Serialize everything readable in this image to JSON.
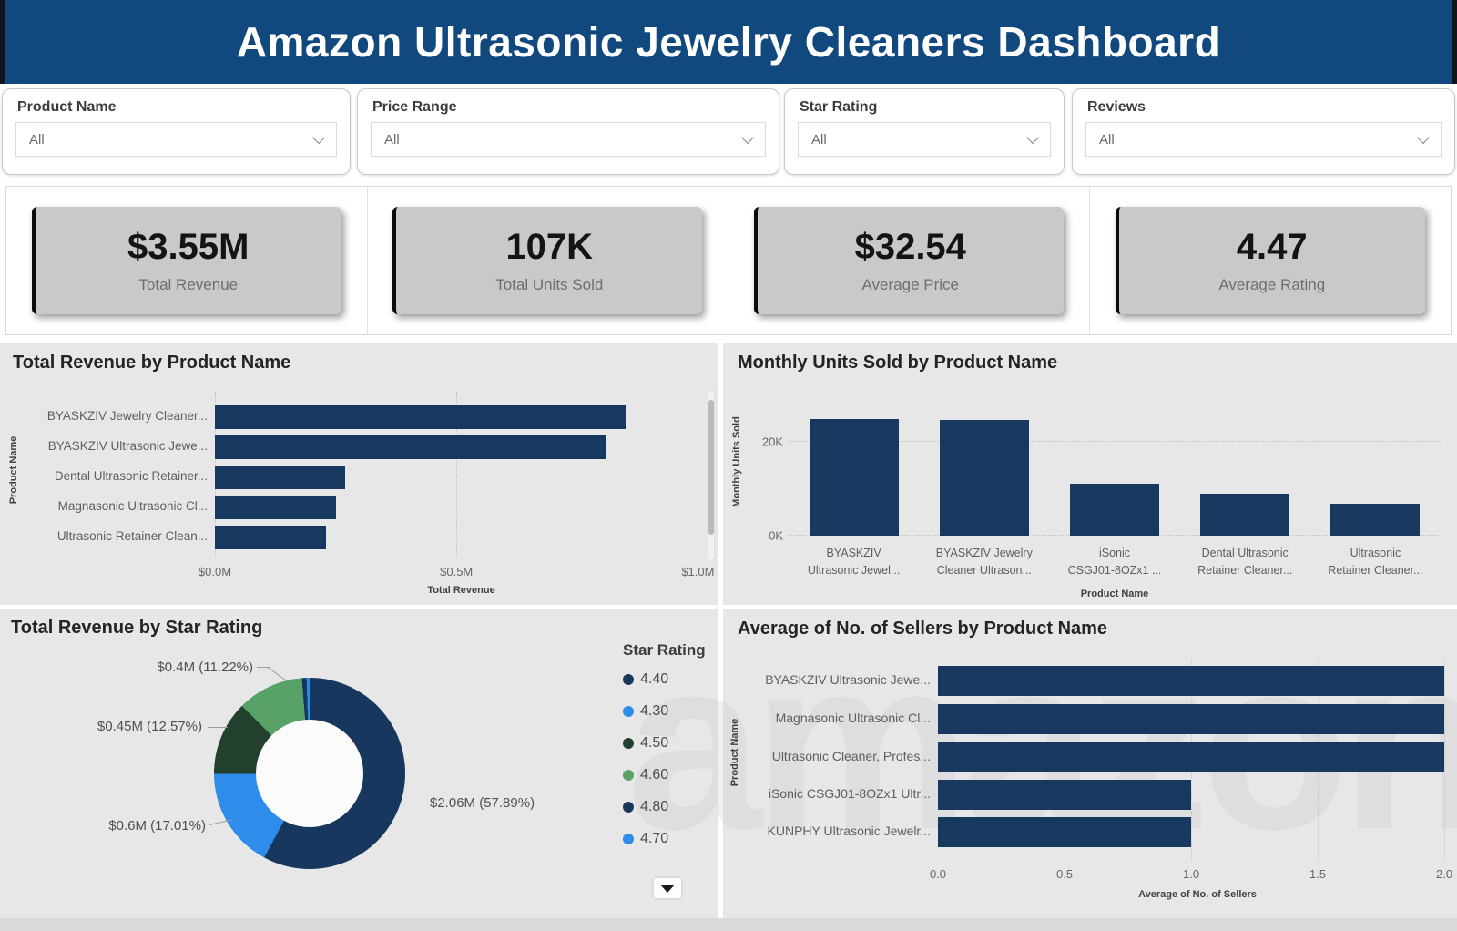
{
  "header": {
    "title": "Amazon Ultrasonic Jewelry Cleaners Dashboard"
  },
  "filters": [
    {
      "label": "Product Name",
      "value": "All"
    },
    {
      "label": "Price Range",
      "value": "All"
    },
    {
      "label": "Star Rating",
      "value": "All"
    },
    {
      "label": "Reviews",
      "value": "All"
    }
  ],
  "kpis": [
    {
      "value": "$3.55M",
      "label": "Total Revenue"
    },
    {
      "value": "107K",
      "label": "Total Units Sold"
    },
    {
      "value": "$32.54",
      "label": "Average Price"
    },
    {
      "value": "4.47",
      "label": "Average Rating"
    }
  ],
  "watermark": "amazon",
  "colors": {
    "header_bg": "#11497E",
    "bar": "#17395F",
    "panel_bg": "#E7E7E7",
    "kpi_card_bg": "#C9C9C9",
    "accent_blue": "#2E8CEB",
    "dark_green": "#21402E",
    "green": "#58A268"
  },
  "chart_data": [
    {
      "id": "revenue_by_product",
      "type": "bar",
      "orientation": "horizontal",
      "title": "Total Revenue by Product Name",
      "xlabel": "Total Revenue",
      "ylabel": "Product Name",
      "categories": [
        "BYASKZIV Jewelry Cleaner...",
        "BYASKZIV Ultrasonic Jewe...",
        "Dental Ultrasonic Retainer...",
        "Magnasonic Ultrasonic Cl...",
        "Ultrasonic Retainer Clean..."
      ],
      "values": [
        0.85,
        0.81,
        0.27,
        0.25,
        0.23
      ],
      "unit": "$M",
      "axis_max": 1.02,
      "x_ticks": [
        0,
        0.5,
        1
      ],
      "x_tick_labels": [
        "$0.0M",
        "$0.5M",
        "$1.0M"
      ],
      "has_scrollbar": true
    },
    {
      "id": "monthly_units_by_product",
      "type": "bar",
      "orientation": "vertical",
      "title": "Monthly Units Sold by Product Name",
      "xlabel": "Product Name",
      "ylabel": "Monthly Units Sold",
      "categories": [
        [
          "BYASKZIV",
          "Ultrasonic Jewel..."
        ],
        [
          "BYASKZIV Jewelry",
          "Cleaner Ultrason..."
        ],
        [
          "iSonic",
          "CSGJ01-8OZx1 ..."
        ],
        [
          "Dental Ultrasonic",
          "Retainer Cleaner..."
        ],
        [
          "Ultrasonic",
          "Retainer Cleaner..."
        ]
      ],
      "values": [
        24.9,
        24.7,
        11.1,
        8.9,
        6.9
      ],
      "unit": "K",
      "axis_max": 30,
      "y_ticks": [
        0,
        20
      ],
      "y_tick_labels": [
        "0K",
        "20K"
      ]
    },
    {
      "id": "revenue_by_star_rating",
      "type": "donut",
      "title": "Total Revenue by Star Rating",
      "legend_title": "Star Rating",
      "slices": [
        {
          "rating": "4.40",
          "color": "#17375E",
          "pct": 57.89,
          "label": "$2.06M (57.89%)"
        },
        {
          "rating": "4.30",
          "color": "#2E8CEB",
          "pct": 17.01,
          "label": "$0.6M (17.01%)"
        },
        {
          "rating": "4.50",
          "color": "#21402E",
          "pct": 12.57,
          "label": "$0.45M (12.57%)"
        },
        {
          "rating": "4.60",
          "color": "#58A268",
          "pct": 11.22,
          "label": "$0.4M (11.22%)"
        },
        {
          "rating": "4.80",
          "color": "#17375E",
          "pct": 0.8,
          "label": ""
        },
        {
          "rating": "4.70",
          "color": "#2E8CEB",
          "pct": 0.51,
          "label": ""
        }
      ]
    },
    {
      "id": "avg_sellers_by_product",
      "type": "bar",
      "orientation": "horizontal",
      "title": "Average of No. of Sellers by Product Name",
      "xlabel": "Average of No. of Sellers",
      "ylabel": "Product Name",
      "categories": [
        "BYASKZIV Ultrasonic Jewe...",
        "Magnasonic Ultrasonic Cl...",
        "Ultrasonic Cleaner, Profes...",
        "iSonic CSGJ01-8OZx1 Ultr...",
        "KUNPHY Ultrasonic Jewelr..."
      ],
      "values": [
        2,
        2,
        2,
        1,
        1
      ],
      "axis_max": 2.05,
      "x_ticks": [
        0,
        0.5,
        1,
        1.5,
        2
      ],
      "x_tick_labels": [
        "0.0",
        "0.5",
        "1.0",
        "1.5",
        "2.0"
      ]
    }
  ]
}
